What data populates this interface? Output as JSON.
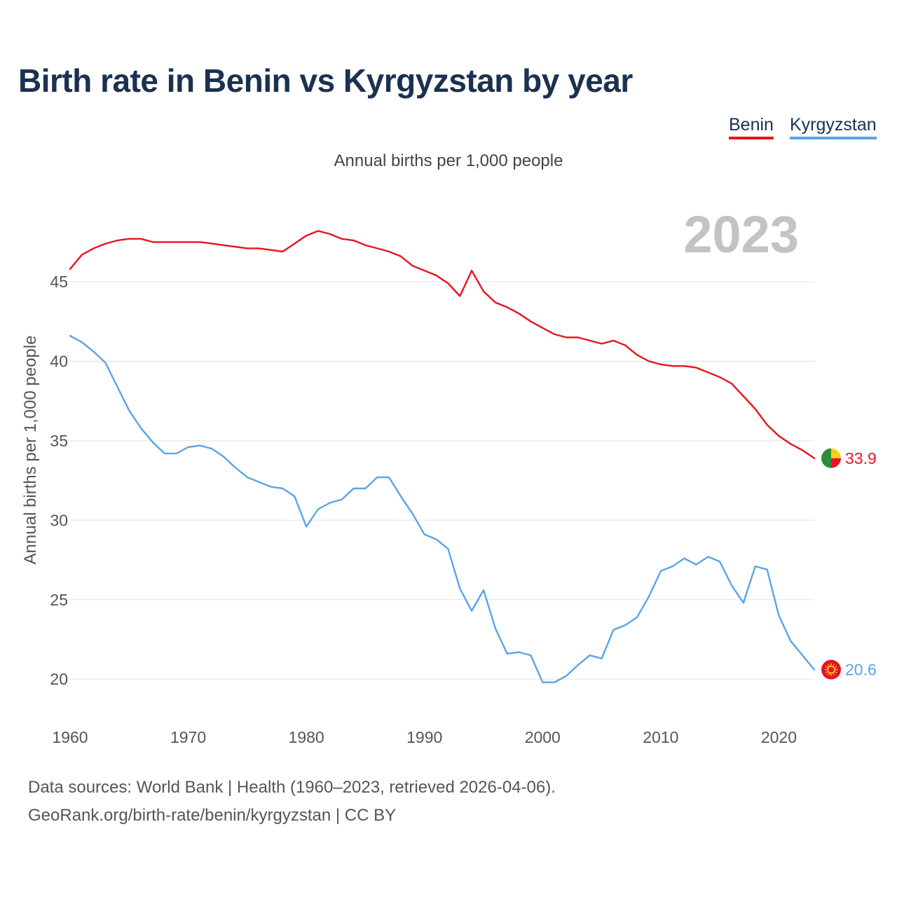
{
  "chart_data": {
    "type": "line",
    "title": "Birth rate in Benin vs Kyrgyzstan by year",
    "subtitle": "Annual births per 1,000 people",
    "ylabel": "Annual births per 1,000 people",
    "xlabel": "",
    "year_label": "2023",
    "ylim": [
      18.2,
      49.5
    ],
    "xlim": [
      1960,
      2023
    ],
    "yticks": [
      20,
      25,
      30,
      35,
      40,
      45
    ],
    "xticks": [
      1960,
      1970,
      1980,
      1990,
      2000,
      2010,
      2020
    ],
    "x": [
      1960,
      1961,
      1962,
      1963,
      1964,
      1965,
      1966,
      1967,
      1968,
      1969,
      1970,
      1971,
      1972,
      1973,
      1974,
      1975,
      1976,
      1977,
      1978,
      1979,
      1980,
      1981,
      1982,
      1983,
      1984,
      1985,
      1986,
      1987,
      1988,
      1989,
      1990,
      1991,
      1992,
      1993,
      1994,
      1995,
      1996,
      1997,
      1998,
      1999,
      2000,
      2001,
      2002,
      2003,
      2004,
      2005,
      2006,
      2007,
      2008,
      2009,
      2010,
      2011,
      2012,
      2013,
      2014,
      2015,
      2016,
      2017,
      2018,
      2019,
      2020,
      2021,
      2022,
      2023
    ],
    "series": [
      {
        "name": "Benin",
        "color": "#e8141c",
        "end_label": "33.9",
        "values": [
          45.8,
          46.7,
          47.1,
          47.4,
          47.6,
          47.7,
          47.7,
          47.5,
          47.5,
          47.5,
          47.5,
          47.5,
          47.4,
          47.3,
          47.2,
          47.1,
          47.1,
          47.0,
          46.9,
          47.4,
          47.9,
          48.2,
          48.0,
          47.7,
          47.6,
          47.3,
          47.1,
          46.9,
          46.6,
          46.0,
          45.7,
          45.4,
          44.9,
          44.1,
          45.7,
          44.4,
          43.7,
          43.4,
          43.0,
          42.5,
          42.1,
          41.7,
          41.5,
          41.5,
          41.3,
          41.1,
          41.3,
          41.0,
          40.4,
          40.0,
          39.8,
          39.7,
          39.7,
          39.6,
          39.3,
          39.0,
          38.6,
          37.8,
          37.0,
          36.0,
          35.3,
          34.8,
          34.4,
          33.9
        ]
      },
      {
        "name": "Kyrgyzstan",
        "color": "#5aa4e6",
        "end_label": "20.6",
        "values": [
          41.6,
          41.2,
          40.6,
          39.9,
          38.4,
          36.9,
          35.8,
          34.9,
          34.2,
          34.2,
          34.6,
          34.7,
          34.5,
          34.0,
          33.3,
          32.7,
          32.4,
          32.1,
          32.0,
          31.5,
          29.6,
          30.7,
          31.1,
          31.3,
          32.0,
          32.0,
          32.7,
          32.7,
          31.5,
          30.4,
          29.1,
          28.8,
          28.2,
          25.7,
          24.3,
          25.6,
          23.2,
          21.6,
          21.7,
          21.5,
          19.8,
          19.8,
          20.2,
          20.9,
          21.5,
          21.3,
          23.1,
          23.4,
          23.9,
          25.2,
          26.8,
          27.1,
          27.6,
          27.2,
          27.7,
          27.4,
          25.9,
          24.8,
          27.1,
          26.9,
          24.0,
          22.4,
          21.5,
          20.6
        ]
      }
    ]
  },
  "legend": {
    "benin": "Benin",
    "kyrgyzstan": "Kyrgyzstan"
  },
  "footer": {
    "line1": "Data sources: World Bank | Health (1960–2023, retrieved 2026-04-06).",
    "line2": "GeoRank.org/birth-rate/benin/kyrgyzstan | CC BY"
  },
  "flags": {
    "benin": {
      "green": "#2e8b3a",
      "yellow": "#fcd116",
      "red": "#e8112d"
    },
    "kyrgyzstan": {
      "red": "#e8112d",
      "sun": "#ffef00"
    }
  }
}
